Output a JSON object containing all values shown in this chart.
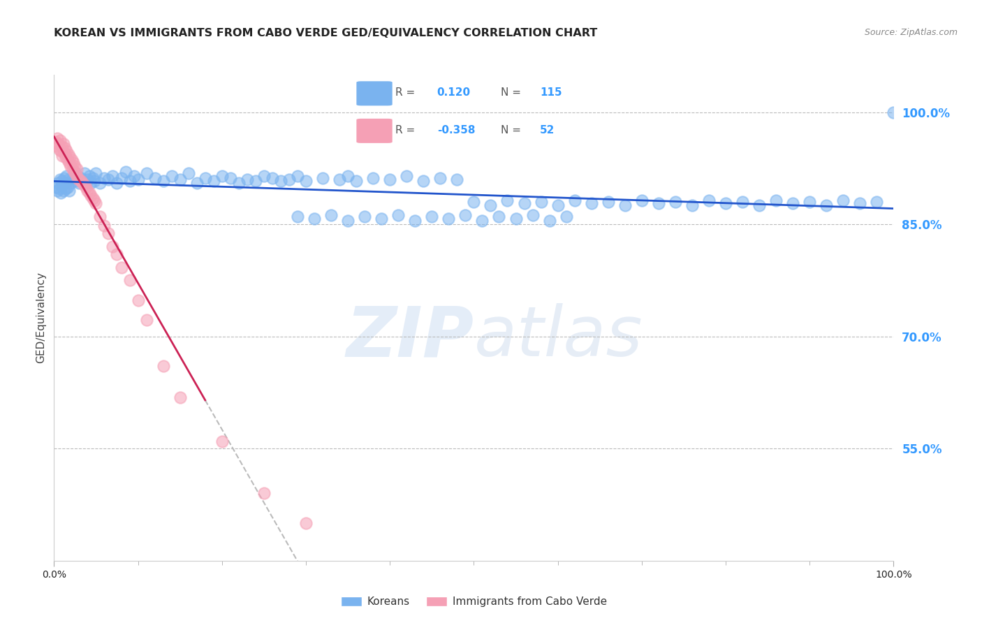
{
  "title": "KOREAN VS IMMIGRANTS FROM CABO VERDE GED/EQUIVALENCY CORRELATION CHART",
  "source_text": "Source: ZipAtlas.com",
  "ylabel": "GED/Equivalency",
  "xlim": [
    0.0,
    1.0
  ],
  "ylim": [
    0.4,
    1.05
  ],
  "yticks": [
    0.55,
    0.7,
    0.85,
    1.0
  ],
  "ytick_labels": [
    "55.0%",
    "70.0%",
    "85.0%",
    "100.0%"
  ],
  "blue_R": "0.120",
  "blue_N": "115",
  "pink_R": "-0.358",
  "pink_N": "52",
  "legend_label_blue": "Koreans",
  "legend_label_pink": "Immigrants from Cabo Verde",
  "blue_color": "#7ab3ef",
  "pink_color": "#f5a0b5",
  "blue_line_color": "#2255cc",
  "pink_line_color": "#cc2255",
  "watermark_zip": "ZIP",
  "watermark_atlas": "atlas",
  "background_color": "#ffffff",
  "grid_color": "#bbbbbb",
  "right_axis_color": "#3399ff",
  "blue_scatter_x": [
    0.002,
    0.004,
    0.005,
    0.006,
    0.007,
    0.008,
    0.009,
    0.01,
    0.011,
    0.012,
    0.013,
    0.014,
    0.015,
    0.016,
    0.017,
    0.018,
    0.02,
    0.022,
    0.024,
    0.026,
    0.028,
    0.03,
    0.032,
    0.034,
    0.036,
    0.038,
    0.04,
    0.042,
    0.044,
    0.046,
    0.048,
    0.05,
    0.055,
    0.06,
    0.065,
    0.07,
    0.075,
    0.08,
    0.085,
    0.09,
    0.095,
    0.1,
    0.11,
    0.12,
    0.13,
    0.14,
    0.15,
    0.16,
    0.17,
    0.18,
    0.19,
    0.2,
    0.21,
    0.22,
    0.23,
    0.24,
    0.25,
    0.26,
    0.27,
    0.28,
    0.29,
    0.3,
    0.32,
    0.34,
    0.35,
    0.36,
    0.38,
    0.4,
    0.42,
    0.44,
    0.46,
    0.48,
    0.5,
    0.52,
    0.54,
    0.56,
    0.58,
    0.6,
    0.62,
    0.64,
    0.66,
    0.68,
    0.7,
    0.72,
    0.74,
    0.76,
    0.78,
    0.8,
    0.82,
    0.84,
    0.86,
    0.88,
    0.9,
    0.92,
    0.94,
    0.96,
    0.98,
    1.0,
    0.29,
    0.31,
    0.33,
    0.35,
    0.37,
    0.39,
    0.41,
    0.43,
    0.45,
    0.47,
    0.49,
    0.51,
    0.53,
    0.55,
    0.57,
    0.59,
    0.61
  ],
  "blue_scatter_y": [
    0.9,
    0.895,
    0.905,
    0.898,
    0.91,
    0.892,
    0.908,
    0.902,
    0.895,
    0.912,
    0.905,
    0.898,
    0.915,
    0.9,
    0.91,
    0.895,
    0.905,
    0.912,
    0.92,
    0.908,
    0.915,
    0.905,
    0.912,
    0.908,
    0.918,
    0.905,
    0.91,
    0.915,
    0.905,
    0.912,
    0.908,
    0.918,
    0.905,
    0.912,
    0.91,
    0.915,
    0.905,
    0.912,
    0.92,
    0.908,
    0.915,
    0.91,
    0.918,
    0.912,
    0.908,
    0.915,
    0.91,
    0.918,
    0.905,
    0.912,
    0.908,
    0.915,
    0.912,
    0.905,
    0.91,
    0.908,
    0.915,
    0.912,
    0.908,
    0.91,
    0.915,
    0.908,
    0.912,
    0.91,
    0.915,
    0.908,
    0.912,
    0.91,
    0.915,
    0.908,
    0.912,
    0.91,
    0.88,
    0.875,
    0.882,
    0.878,
    0.88,
    0.875,
    0.882,
    0.878,
    0.88,
    0.875,
    0.882,
    0.878,
    0.88,
    0.875,
    0.882,
    0.878,
    0.88,
    0.875,
    0.882,
    0.878,
    0.88,
    0.875,
    0.882,
    0.878,
    0.88,
    1.0,
    0.86,
    0.858,
    0.862,
    0.855,
    0.86,
    0.858,
    0.862,
    0.855,
    0.86,
    0.858,
    0.862,
    0.855,
    0.86,
    0.858,
    0.862,
    0.855,
    0.86
  ],
  "pink_scatter_x": [
    0.002,
    0.003,
    0.004,
    0.005,
    0.006,
    0.007,
    0.008,
    0.009,
    0.01,
    0.011,
    0.012,
    0.013,
    0.014,
    0.015,
    0.016,
    0.017,
    0.018,
    0.019,
    0.02,
    0.021,
    0.022,
    0.023,
    0.024,
    0.025,
    0.026,
    0.027,
    0.028,
    0.03,
    0.032,
    0.034,
    0.036,
    0.038,
    0.04,
    0.042,
    0.044,
    0.046,
    0.048,
    0.05,
    0.055,
    0.06,
    0.065,
    0.07,
    0.075,
    0.08,
    0.09,
    0.1,
    0.11,
    0.13,
    0.15,
    0.2,
    0.25,
    0.3
  ],
  "pink_scatter_y": [
    0.96,
    0.955,
    0.965,
    0.958,
    0.95,
    0.962,
    0.948,
    0.955,
    0.942,
    0.958,
    0.945,
    0.952,
    0.94,
    0.948,
    0.936,
    0.944,
    0.932,
    0.94,
    0.928,
    0.936,
    0.924,
    0.932,
    0.92,
    0.928,
    0.916,
    0.924,
    0.912,
    0.91,
    0.908,
    0.905,
    0.902,
    0.9,
    0.895,
    0.892,
    0.888,
    0.885,
    0.882,
    0.878,
    0.86,
    0.848,
    0.838,
    0.82,
    0.81,
    0.792,
    0.775,
    0.748,
    0.722,
    0.66,
    0.618,
    0.56,
    0.49,
    0.45
  ]
}
